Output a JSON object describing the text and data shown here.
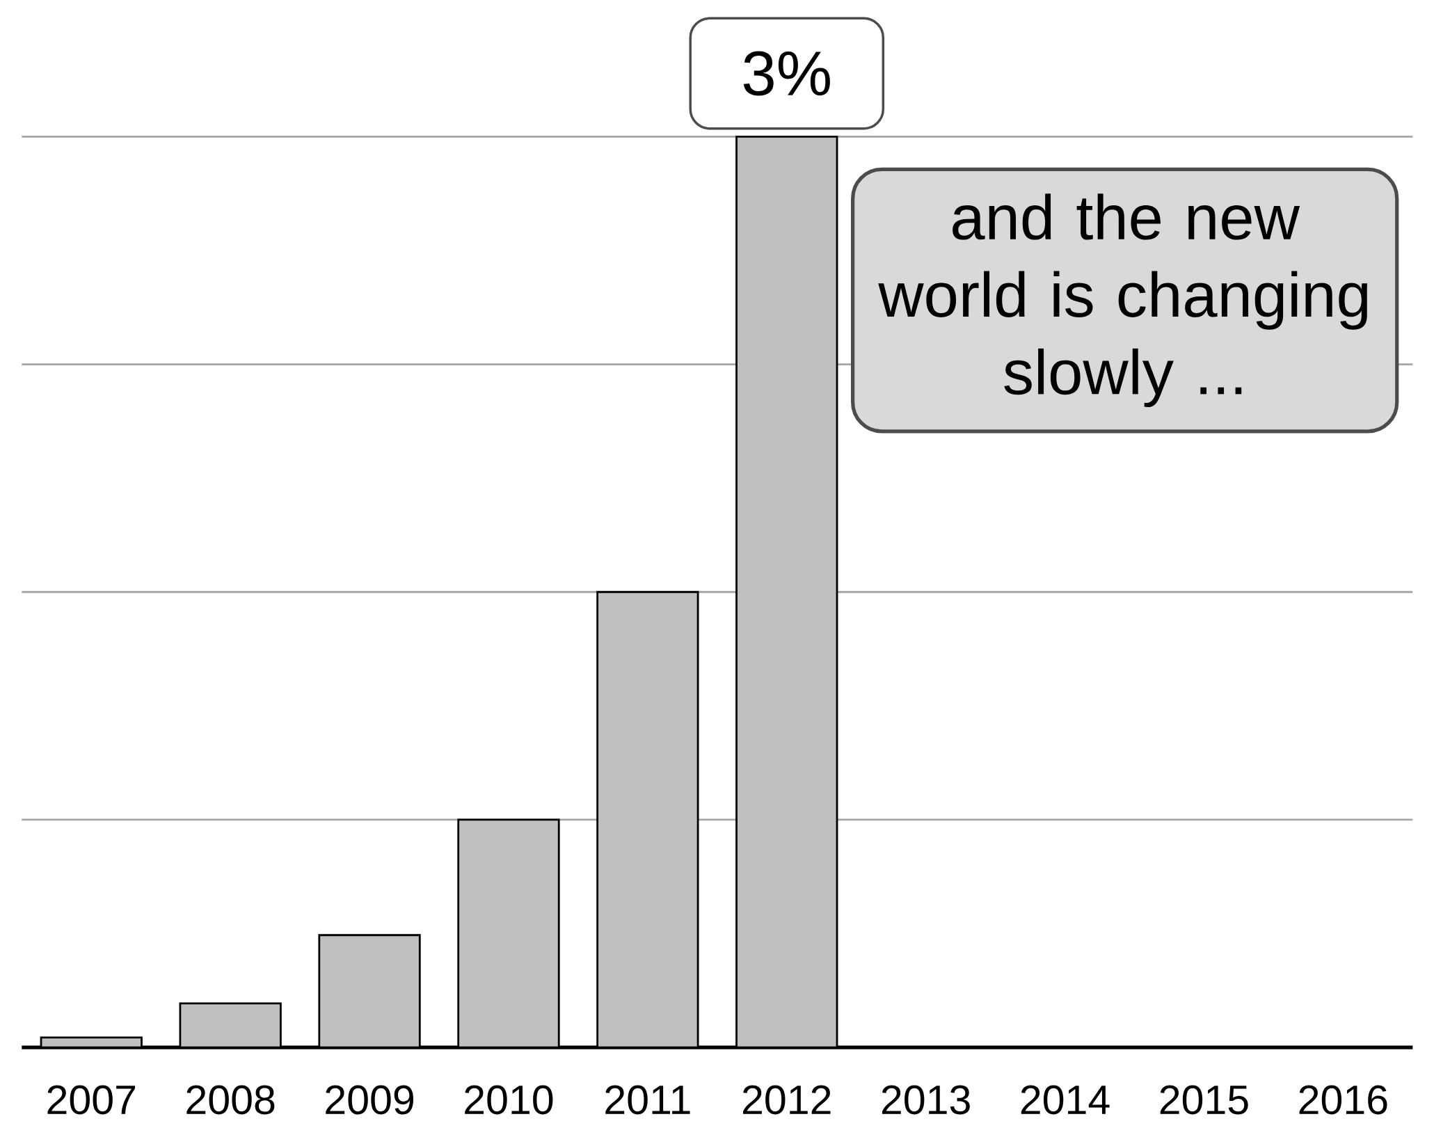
{
  "chart_data": {
    "type": "bar",
    "categories": [
      "2007",
      "2008",
      "2009",
      "2010",
      "2011",
      "2012",
      "2013",
      "2014",
      "2015",
      "2016"
    ],
    "values": [
      0.033,
      0.145,
      0.37,
      0.75,
      1.5,
      3,
      null,
      null,
      null,
      null
    ],
    "value_labels": [
      null,
      null,
      null,
      null,
      null,
      "3%",
      null,
      null,
      null,
      null
    ],
    "color": "#c0c0c0",
    "yticks": [
      {
        "value": 0.75,
        "label": null
      },
      {
        "value": 1.5,
        "label": null
      },
      {
        "value": 2.25,
        "label": null
      },
      {
        "value": 3,
        "label": null
      }
    ],
    "grid": "y",
    "tick_labels": "x",
    "annotations": [
      "and the new world is changing slowly ..."
    ]
  }
}
